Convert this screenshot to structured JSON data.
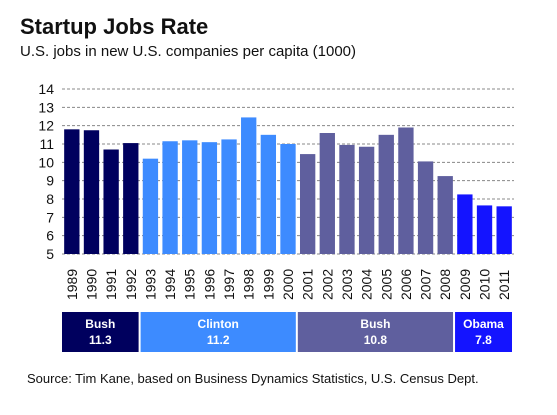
{
  "title": "Startup Jobs Rate",
  "subtitle": "U.S. jobs in new U.S. companies per capita (1000)",
  "source": "Source: Tim Kane, based on Business Dynamics Statistics, U.S. Census Dept.",
  "chart_data": {
    "type": "bar",
    "title": "Startup Jobs Rate",
    "subtitle": "U.S. jobs in new U.S. companies per capita (1000)",
    "xlabel": "",
    "ylabel": "",
    "ylim": [
      5,
      14
    ],
    "yticks": [
      5,
      6,
      7,
      8,
      9,
      10,
      11,
      12,
      13,
      14
    ],
    "grid": true,
    "categories": [
      "1989",
      "1990",
      "1991",
      "1992",
      "1993",
      "1994",
      "1995",
      "1996",
      "1997",
      "1998",
      "1999",
      "2000",
      "2001",
      "2002",
      "2003",
      "2004",
      "2005",
      "2006",
      "2007",
      "2008",
      "2009",
      "2010",
      "2011"
    ],
    "values": [
      11.8,
      11.75,
      10.7,
      11.05,
      10.2,
      11.15,
      11.2,
      11.1,
      11.25,
      12.45,
      11.5,
      11.0,
      10.45,
      11.6,
      10.95,
      10.85,
      11.5,
      11.9,
      10.05,
      9.25,
      8.25,
      7.65,
      7.6
    ],
    "eras": [
      {
        "name": "Bush",
        "value": "11.3",
        "start": 0,
        "end": 3,
        "color": "#00005e"
      },
      {
        "name": "Clinton",
        "value": "11.2",
        "start": 4,
        "end": 11,
        "color": "#3d8bff"
      },
      {
        "name": "Bush",
        "value": "10.8",
        "start": 12,
        "end": 19,
        "color": "#5f5f9e"
      },
      {
        "name": "Obama",
        "value": "7.8",
        "start": 20,
        "end": 22,
        "color": "#1414ff"
      }
    ]
  }
}
